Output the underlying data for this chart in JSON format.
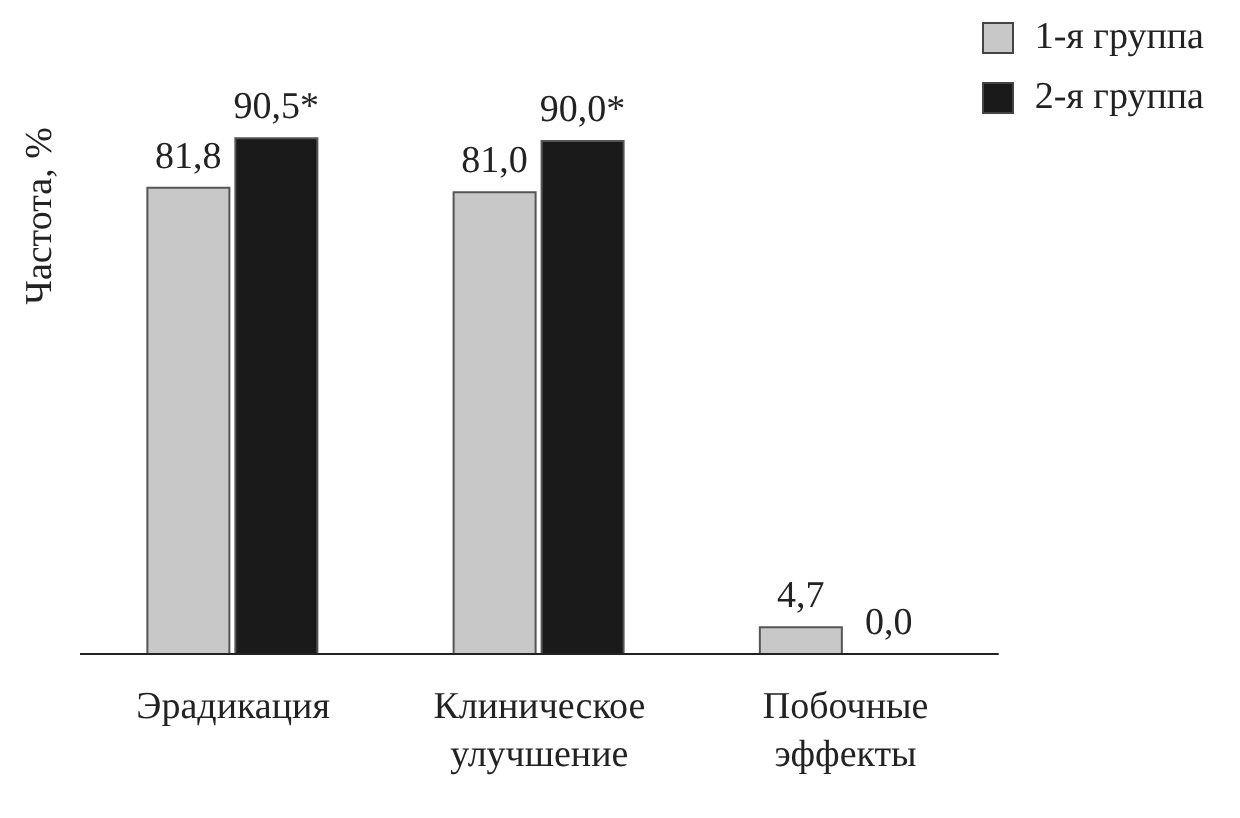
{
  "chart_data": {
    "type": "bar",
    "ylabel": "Частота, %",
    "categories": [
      "Эрадикация",
      "Клиническое улучшение",
      "Побочные эффекты"
    ],
    "series": [
      {
        "name": "1-я группа",
        "color": "#c8c8c8",
        "values": [
          81.8,
          81.0,
          4.7
        ],
        "value_labels": [
          "81,8",
          "81,0",
          "4,7"
        ]
      },
      {
        "name": "2-я группа",
        "color": "#1a1a1a",
        "values": [
          90.5,
          90.0,
          0.0
        ],
        "value_labels": [
          "90,5*",
          "90,0*",
          "0,0"
        ]
      }
    ],
    "legend": "top right",
    "grid": false
  }
}
